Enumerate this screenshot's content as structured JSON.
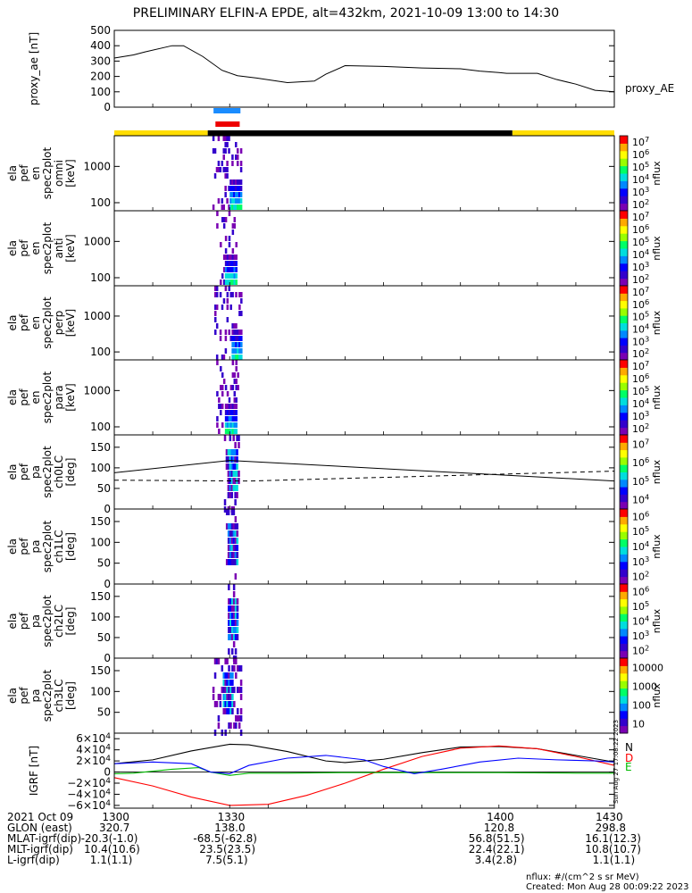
{
  "title": "PRELIMINARY ELFIN-A EPDE, alt=432km, 2021-10-09 13:00 to 14:30",
  "time_axis": {
    "range_min": [
      1300,
      1430
    ],
    "ticks": [
      "1300",
      "1330",
      "1400",
      "1430"
    ]
  },
  "colors": {
    "black": "#000000",
    "gray_line": "#888888",
    "blue": "#0000ff",
    "red": "#ff0000",
    "green": "#00bb00",
    "yellow": "#ffdd00",
    "bar_blue": "#1a8cff",
    "bar_red": "#ee0000"
  },
  "colormap": [
    "#ffffff",
    "#7a00b3",
    "#3300cc",
    "#0000ff",
    "#0088ff",
    "#00dddd",
    "#00ff66",
    "#99ff00",
    "#ffff00",
    "#ffaa00",
    "#ff0000"
  ],
  "bars": {
    "sun_bar": [
      {
        "from": 1300,
        "to": 1324.3,
        "color": "yellow"
      },
      {
        "from": 1324.3,
        "to": 1403.5,
        "color": "black"
      },
      {
        "from": 1403.5,
        "to": 1430,
        "color": "yellow"
      }
    ],
    "science_bar_blue": {
      "from": 1325.8,
      "to": 1332.8
    },
    "science_bar_red": {
      "from": 1326.3,
      "to": 1332.6
    }
  },
  "chart_data": [
    {
      "type": "line",
      "panel": "proxy_ae",
      "ylabel": "proxy_ae [nT]",
      "legend_label": "proxy_AE",
      "ylim": [
        0,
        500
      ],
      "yticks": [
        "0",
        "100",
        "200",
        "300",
        "400",
        "500"
      ],
      "x": [
        1300,
        1305,
        1308,
        1315,
        1318,
        1323,
        1328,
        1332,
        1337,
        1345,
        1352,
        1355,
        1360,
        1370,
        1380,
        1390,
        1395,
        1400,
        1402,
        1407,
        1410,
        1415,
        1420,
        1425,
        1430
      ],
      "values": [
        320,
        340,
        360,
        400,
        400,
        330,
        240,
        205,
        190,
        160,
        170,
        215,
        270,
        265,
        255,
        250,
        235,
        225,
        220,
        220,
        220,
        180,
        150,
        110,
        100
      ]
    },
    {
      "type": "heatmap",
      "panel": "en omni",
      "ylabel": "ela pef en spec2plot omni [keV]",
      "y_log": true,
      "ylim": [
        60,
        7000
      ],
      "yticks": [
        "100",
        "1000"
      ],
      "colorbar": {
        "label": "nflux",
        "ticks": [
          "10^2",
          "10^3",
          "10^4",
          "10^5",
          "10^6",
          "10^7"
        ]
      },
      "nonzero_time_range": [
        1325.5,
        1333.0
      ],
      "peak": {
        "time": 1331.5,
        "energy_keV": 120,
        "level": "10^5"
      }
    },
    {
      "type": "heatmap",
      "panel": "en anti",
      "ylabel": "ela pef en spec2plot anti [keV]",
      "y_log": true,
      "ylim": [
        60,
        7000
      ],
      "yticks": [
        "100",
        "1000"
      ],
      "colorbar": {
        "label": "nflux",
        "ticks": [
          "10^2",
          "10^3",
          "10^4",
          "10^5",
          "10^6",
          "10^7"
        ]
      },
      "nonzero_time_range": [
        1326.5,
        1331.5
      ],
      "peak": {
        "time": 1330.0,
        "energy_keV": 110,
        "level": "10^4"
      }
    },
    {
      "type": "heatmap",
      "panel": "en perp",
      "ylabel": "ela pef en spec2plot perp [keV]",
      "y_log": true,
      "ylim": [
        60,
        7000
      ],
      "yticks": [
        "100",
        "1000"
      ],
      "colorbar": {
        "label": "nflux",
        "ticks": [
          "10^2",
          "10^3",
          "10^4",
          "10^5",
          "10^6",
          "10^7"
        ]
      },
      "nonzero_time_range": [
        1326.0,
        1333.0
      ],
      "peak": {
        "time": 1331.8,
        "energy_keV": 150,
        "level": "10^5"
      }
    },
    {
      "type": "heatmap",
      "panel": "en para",
      "ylabel": "ela pef en spec2plot para [keV]",
      "y_log": true,
      "ylim": [
        60,
        7000
      ],
      "yticks": [
        "100",
        "1000"
      ],
      "colorbar": {
        "label": "nflux",
        "ticks": [
          "10^2",
          "10^3",
          "10^4",
          "10^5",
          "10^6",
          "10^7"
        ]
      },
      "nonzero_time_range": [
        1326.5,
        1332.0
      ],
      "peak": {
        "time": 1330.3,
        "energy_keV": 90,
        "level": "10^3"
      }
    },
    {
      "type": "heatmap",
      "panel": "pa ch0LC",
      "ylabel": "ela pef pa spec2plot ch0LC [deg]",
      "ylim": [
        0,
        180
      ],
      "yticks": [
        "0",
        "50",
        "100",
        "150"
      ],
      "colorbar": {
        "label": "nflux",
        "ticks": [
          "10^4",
          "10^5",
          "10^6",
          "10^7"
        ]
      },
      "loss_cone_lines": {
        "solid_deg_at": [
          [
            1300,
            88
          ],
          [
            1330,
            118
          ],
          [
            1430,
            68
          ]
        ],
        "dashed_deg_at": [
          [
            1300,
            70
          ],
          [
            1335,
            68
          ],
          [
            1430,
            92
          ]
        ]
      },
      "nonzero_time_range": [
        1328.5,
        1332.5
      ]
    },
    {
      "type": "heatmap",
      "panel": "pa ch1LC",
      "ylabel": "ela pef pa spec2plot ch1LC [deg]",
      "ylim": [
        0,
        180
      ],
      "yticks": [
        "0",
        "50",
        "100",
        "150"
      ],
      "colorbar": {
        "label": "nflux",
        "ticks": [
          "10^2",
          "10^3",
          "10^4",
          "10^5",
          "10^6"
        ]
      },
      "nonzero_time_range": [
        1329.0,
        1332.0
      ]
    },
    {
      "type": "heatmap",
      "panel": "pa ch2LC",
      "ylabel": "ela pef pa spec2plot ch2LC [deg]",
      "ylim": [
        0,
        180
      ],
      "yticks": [
        "0",
        "50",
        "100",
        "150"
      ],
      "colorbar": {
        "label": "nflux",
        "ticks": [
          "10^2",
          "10^3",
          "10^4",
          "10^5",
          "10^6"
        ]
      },
      "nonzero_time_range": [
        1329.5,
        1332.0
      ]
    },
    {
      "type": "heatmap",
      "panel": "pa ch3LC",
      "ylabel": "ela pef pa spec2plot ch3LC [deg]",
      "ylim": [
        0,
        180
      ],
      "yticks": [
        "50",
        "100",
        "150"
      ],
      "colorbar": {
        "label": "nflux",
        "ticks": [
          "10",
          "100",
          "1000",
          "10000"
        ]
      },
      "nonzero_time_range": [
        1325.5,
        1333.0
      ]
    },
    {
      "type": "line",
      "panel": "IGRF",
      "ylabel": "IGRF [nT]",
      "ylim": [
        -65000,
        70000
      ],
      "yticks": [
        "-6×10^4",
        "-4×10^4",
        "-2×10^4",
        "0",
        "2×10^4",
        "4×10^4",
        "6×10^4"
      ],
      "series": [
        {
          "name": "N",
          "color": "black",
          "x": [
            1300,
            1310,
            1320,
            1330,
            1335,
            1345,
            1355,
            1360,
            1370,
            1380,
            1390,
            1400,
            1410,
            1420,
            1430
          ],
          "values": [
            15000,
            22000,
            38000,
            50000,
            49000,
            37000,
            20000,
            17000,
            23000,
            35000,
            45000,
            46000,
            42000,
            30000,
            18000
          ]
        },
        {
          "name": "D",
          "color": "red",
          "x": [
            1300,
            1310,
            1320,
            1330,
            1340,
            1350,
            1360,
            1370,
            1380,
            1390,
            1400,
            1410,
            1420,
            1430
          ],
          "values": [
            -10000,
            -25000,
            -45000,
            -60000,
            -58000,
            -42000,
            -20000,
            5000,
            28000,
            43000,
            47000,
            42000,
            28000,
            12000
          ]
        },
        {
          "name": "E",
          "color": "green",
          "x": [
            1300,
            1305,
            1315,
            1322,
            1325,
            1330,
            1335,
            1345,
            1360,
            1380,
            1400,
            1420,
            1430
          ],
          "values": [
            -3000,
            -2000,
            5000,
            8000,
            0,
            -6000,
            -2000,
            -2000,
            -1000,
            -1000,
            -1000,
            -2000,
            -2000
          ]
        },
        {
          "name": "",
          "color": "blue",
          "x": [
            1300,
            1310,
            1320,
            1325,
            1330,
            1335,
            1345,
            1355,
            1365,
            1370,
            1378,
            1385,
            1395,
            1405,
            1415,
            1425,
            1430
          ],
          "values": [
            15000,
            18000,
            15000,
            0,
            -3000,
            12000,
            25000,
            30000,
            22000,
            10000,
            -3000,
            5000,
            18000,
            25000,
            22000,
            20000,
            18000
          ]
        }
      ]
    }
  ],
  "footer": {
    "rows": [
      {
        "label": "2021 Oct 09",
        "vals": [
          "1300",
          "1330",
          "1400",
          "1430"
        ]
      },
      {
        "label": "GLON (east)",
        "vals": [
          "320.7",
          "138.0",
          "120.8",
          "298.8"
        ]
      },
      {
        "label": "MLAT-igrf(dip)",
        "vals": [
          "-20.3(-1.0)",
          "-68.5(-62.8)",
          "56.8(51.5)",
          "16.1(12.3)"
        ]
      },
      {
        "label": "MLT-igrf(dip)",
        "vals": [
          "10.4(10.6)",
          "23.5(23.5)",
          "22.4(22.1)",
          "10.8(10.7)"
        ]
      },
      {
        "label": "L-igrf(dip)",
        "vals": [
          "1.1(1.1)",
          "7.5(5.1)",
          "3.4(2.8)",
          "1.1(1.1)"
        ]
      }
    ],
    "units_note": "nflux: #/(cm^2 s sr MeV)",
    "created": "Created: Mon Aug 28 00:09:22 2023",
    "side_stamp": "Sun Aug 27 17:08:22 2023"
  }
}
